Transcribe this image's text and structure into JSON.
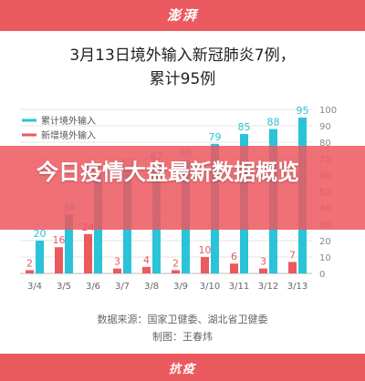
{
  "header": {
    "brand": "澎湃"
  },
  "footer": {
    "label": "抗疫"
  },
  "banner": {
    "text": "今日疫情大盘最新数据概览"
  },
  "source_note": "数据来源：国家卫健委、湖北省卫健委",
  "producer_note": "制图：王春炜",
  "colors": {
    "imported": "#2ac3d8",
    "new": "#ea5a5f",
    "accent": "#ea5a5f"
  },
  "chart_data": {
    "type": "bar",
    "title": "3月13日境外输入新冠肺炎7例，累计95例",
    "title_lines": [
      "3月13日境外输入新冠肺炎7例，",
      "累计95例"
    ],
    "categories": [
      "3/4",
      "3/5",
      "3/6",
      "3/7",
      "3/8",
      "3/9",
      "3/10",
      "3/11",
      "3/12",
      "3/13"
    ],
    "series": [
      {
        "name": "累计境外输入",
        "values": [
          20,
          36,
          60,
          63,
          67,
          69,
          79,
          85,
          88,
          95
        ]
      },
      {
        "name": "新增境外输入",
        "values": [
          2,
          16,
          24,
          3,
          4,
          2,
          10,
          6,
          3,
          7
        ]
      }
    ],
    "ylim": [
      0,
      100
    ],
    "yticks": [
      0,
      10,
      20,
      30,
      40,
      50,
      60,
      70,
      80,
      90,
      100
    ],
    "grid": true,
    "legend": "top-left",
    "axis_position": "right"
  }
}
